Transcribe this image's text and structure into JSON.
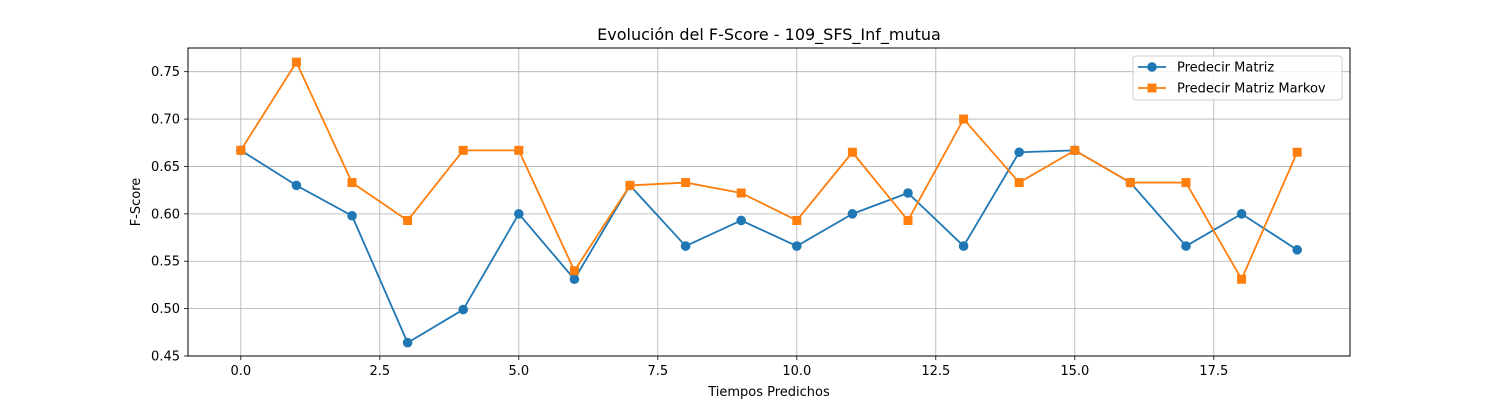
{
  "chart_data": {
    "type": "line",
    "title": "Evolución del F-Score - 109_SFS_Inf_mutua",
    "xlabel": "Tiempos Predichos",
    "ylabel": "F-Score",
    "xlim": [
      -0.95,
      19.95
    ],
    "ylim": [
      0.45,
      0.775
    ],
    "xticks": [
      0.0,
      2.5,
      5.0,
      7.5,
      10.0,
      12.5,
      15.0,
      17.5
    ],
    "xtick_labels": [
      "0.0",
      "2.5",
      "5.0",
      "7.5",
      "10.0",
      "12.5",
      "15.0",
      "17.5"
    ],
    "yticks": [
      0.45,
      0.5,
      0.55,
      0.6,
      0.65,
      0.7,
      0.75
    ],
    "ytick_labels": [
      "0.45",
      "0.50",
      "0.55",
      "0.60",
      "0.65",
      "0.70",
      "0.75"
    ],
    "grid": true,
    "legend_position": "top-right",
    "x": [
      0,
      1,
      2,
      3,
      4,
      5,
      6,
      7,
      8,
      9,
      10,
      11,
      12,
      13,
      14,
      15,
      16,
      17,
      18,
      19
    ],
    "series": [
      {
        "name": "Predecir Matriz",
        "color": "#1f77b4",
        "marker": "circle",
        "values": [
          0.667,
          0.63,
          0.598,
          0.464,
          0.499,
          0.6,
          0.531,
          0.63,
          0.566,
          0.593,
          0.566,
          0.6,
          0.622,
          0.566,
          0.665,
          0.667,
          0.633,
          0.566,
          0.6,
          0.562
        ]
      },
      {
        "name": "Predecir Matriz Markov",
        "color": "#ff7f0e",
        "marker": "square",
        "values": [
          0.667,
          0.76,
          0.633,
          0.593,
          0.667,
          0.667,
          0.54,
          0.63,
          0.633,
          0.622,
          0.593,
          0.665,
          0.593,
          0.7,
          0.633,
          0.667,
          0.633,
          0.633,
          0.531,
          0.665
        ]
      }
    ]
  }
}
